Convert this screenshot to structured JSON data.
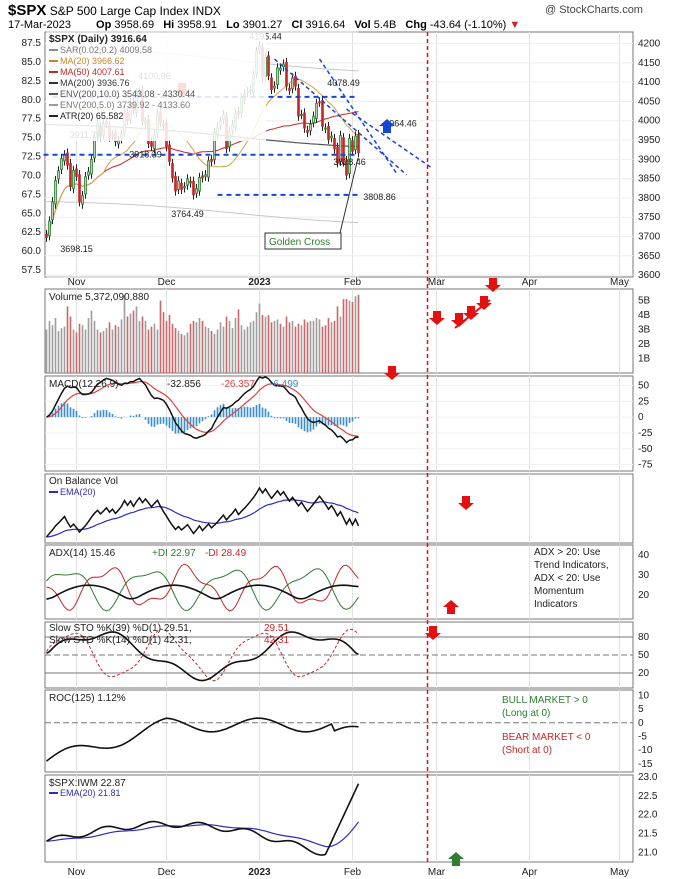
{
  "header": {
    "symbol": "$SPX",
    "name": "S&P 500 Large Cap Index",
    "exchange": "INDX",
    "date": "17-Mar-2023",
    "open_label": "Op",
    "open": "3958.69",
    "high_label": "Hi",
    "high": "3958.91",
    "low_label": "Lo",
    "low": "3901.27",
    "close_label": "Cl",
    "close": "3916.64",
    "vol_label": "Vol",
    "vol": "5.4B",
    "chg_label": "Chg",
    "chg": "-43.64 (-1.10%)",
    "watermark": "@ StockCharts.com"
  },
  "colors": {
    "up": "#2e7d32",
    "down": "#c62828",
    "candle_up": "#2e7d32",
    "candle_down": "#c62828",
    "vol_up": "#9e9e9e",
    "vol_down": "#c96a6a",
    "macd_hist": "#3a8fc8",
    "signal": "#e0423c",
    "ema_blue": "#2b2fb5",
    "annotation_red": "#e31010",
    "annotation_blue": "#1447d6",
    "golden": "#2e7d32"
  },
  "x_axis": {
    "labels": [
      {
        "text": "Nov",
        "day": 10
      },
      {
        "text": "Dec",
        "day": 40
      },
      {
        "text": "2023",
        "day": 71
      },
      {
        "text": "Feb",
        "day": 102
      },
      {
        "text": "Mar",
        "day": 130
      },
      {
        "text": "Apr",
        "day": 161
      },
      {
        "text": "May",
        "day": 191
      }
    ],
    "vline_day": 127
  },
  "chart_data": [
    {
      "type": "candlestick",
      "title": "$SPX (Daily) 3916.64",
      "legend": [
        {
          "label": "SAR(0.02,0.2)",
          "value": "4009.58",
          "color": "#8a8a8a"
        },
        {
          "label": "MA(20)",
          "value": "3966.62",
          "color": "#c8872e"
        },
        {
          "label": "MA(50)",
          "value": "4007.61",
          "color": "#c62828"
        },
        {
          "label": "MA(200)",
          "value": "3936.76",
          "color": "#333333"
        },
        {
          "label": "ENV(200,10.0)",
          "value": "3543.08 - 4330.44",
          "color": "#555555"
        },
        {
          "label": "ENV(200,5.0)",
          "value": "3739.92 - 4133.60",
          "color": "#999999"
        },
        {
          "label": "ATR(20)",
          "value": "65.582",
          "color": "#222222"
        }
      ],
      "right_axis": [
        "4200",
        "4150",
        "4100",
        "4050",
        "4000",
        "3950",
        "3900",
        "3850",
        "3800",
        "3750",
        "3700",
        "3650",
        "3600"
      ],
      "left_axis": [
        "87.5",
        "85.0",
        "82.5",
        "80.0",
        "77.5",
        "75.0",
        "72.5",
        "70.0",
        "67.5",
        "65.0",
        "62.5",
        "60.0",
        "57.5"
      ],
      "ylim": [
        3595,
        4230
      ],
      "close": [
        3698,
        3740,
        3790,
        3845,
        3870,
        3902,
        3912,
        3885,
        3830,
        3871,
        3856,
        3790,
        3806,
        3855,
        3868,
        3900,
        3956,
        3992,
        3959,
        3992,
        3993,
        3958,
        3964,
        3946,
        3949,
        3965,
        4027,
        4000,
        4047,
        4027,
        4072,
        4076,
        3998,
        3999,
        3941,
        3934,
        3963,
        4019,
        3995,
        3990,
        3933,
        3895,
        3852,
        3818,
        3844,
        3822,
        3829,
        3849,
        3839,
        3808,
        3824,
        3853,
        3852,
        3860,
        3896,
        3895,
        3970,
        3983,
        3999,
        4016,
        3928,
        3972,
        3990,
        4020,
        4017,
        4060,
        4070,
        4076,
        4079,
        4119,
        4180,
        4195,
        4111,
        4164,
        4117,
        4081,
        4090,
        4137,
        4136,
        4147,
        4090,
        4079,
        4111,
        4090,
        4012,
        4016,
        3981,
        3970,
        3991,
        4012,
        4045,
        4048,
        3986,
        3981,
        3952,
        3960,
        3927,
        3891,
        3962,
        3893,
        3859,
        3954,
        3921,
        3960,
        3917
      ],
      "annotations": {
        "top_label": "4195.44",
        "labels": [
          "4100.96",
          "3911.79",
          "3918.39",
          "3698.15",
          "3764.49",
          "4078.49",
          "3964.46",
          "3828.46",
          "3808.86"
        ],
        "golden_cross": "Golden Cross",
        "hlines": [
          4062,
          3912,
          3808
        ]
      }
    },
    {
      "type": "bar",
      "title": "Volume 5,372,090,880",
      "right_axis": [
        "5B",
        "4B",
        "3B",
        "2B",
        "1B"
      ],
      "values": [
        3.0,
        3.6,
        3.3,
        3.8,
        2.9,
        3.1,
        3.2,
        4.6,
        3.9,
        3.0,
        2.8,
        3.4,
        3.3,
        3.0,
        3.8,
        4.3,
        3.6,
        3.0,
        2.8,
        2.9,
        3.1,
        3.5,
        3.0,
        3.3,
        3.2,
        3.7,
        5.4,
        3.9,
        4.1,
        4.3,
        4.6,
        3.6,
        3.9,
        3.6,
        3.0,
        3.2,
        3.4,
        3.0,
        5.0,
        4.2,
        3.6,
        4.0,
        3.4,
        3.1,
        2.9,
        2.7,
        2.6,
        2.8,
        3.4,
        3.6,
        3.5,
        3.8,
        3.6,
        3.2,
        3.1,
        2.9,
        2.7,
        3.0,
        3.5,
        3.2,
        3.9,
        3.6,
        3.1,
        3.8,
        4.4,
        3.3,
        3.0,
        3.2,
        3.5,
        3.6,
        4.2,
        4.8,
        4.0,
        3.9,
        4.0,
        3.5,
        3.6,
        3.7,
        3.4,
        3.2,
        3.9,
        3.5,
        3.6,
        3.2,
        3.4,
        3.3,
        3.7,
        3.5,
        3.6,
        3.6,
        3.8,
        3.7,
        3.2,
        3.3,
        3.8,
        3.5,
        3.6,
        4.6,
        3.9,
        5.1,
        5.1,
        5.0,
        4.9,
        5.3,
        5.4
      ]
    },
    {
      "type": "line",
      "title": "MACD(12,26,9)",
      "values": {
        "macd": "-32.856",
        "signal": "-26.357",
        "hist": "-6.499"
      },
      "right_axis": [
        "50",
        "25",
        "0",
        "-25",
        "-50",
        "-75"
      ]
    },
    {
      "type": "line",
      "title": "On Balance Vol",
      "legend": "EMA(20)"
    },
    {
      "type": "line",
      "title": "ADX(14)",
      "values": {
        "adx": "15.46",
        "pdi_label": "+DI",
        "pdi": "22.97",
        "mdi_label": "-DI",
        "mdi": "28.49"
      },
      "right_axis": [
        "40",
        "30",
        "20"
      ],
      "note": [
        "ADX > 20: Use",
        "Trend Indicators,",
        "ADX < 20: Use",
        "Momentum",
        "Indicators"
      ]
    },
    {
      "type": "line",
      "title": "Slow STO",
      "lines": [
        {
          "label": "Slow STO %K(39) %D(1)",
          "k": "29.51",
          "d": "29.51"
        },
        {
          "label": "Slow STO %K(14) %D(1)",
          "k": "42.31",
          "d": "42.31"
        }
      ],
      "right_axis": [
        "80",
        "50",
        "20"
      ]
    },
    {
      "type": "line",
      "title": "ROC(125) 1.12%",
      "right_axis": [
        "10",
        "5",
        "0",
        "-5",
        "-10",
        "-15"
      ],
      "note_bull": [
        "BULL MARKET > 0",
        "(Long at 0)"
      ],
      "note_bear": [
        "BEAR MARKET < 0",
        "(Short at 0)"
      ]
    },
    {
      "type": "line",
      "title": "$SPX:IWM 22.87",
      "legend": "EMA(20) 21.81",
      "right_axis": [
        "23.0",
        "22.5",
        "22.0",
        "21.5",
        "21.0"
      ],
      "ylim": [
        20.75,
        23.05
      ]
    }
  ]
}
